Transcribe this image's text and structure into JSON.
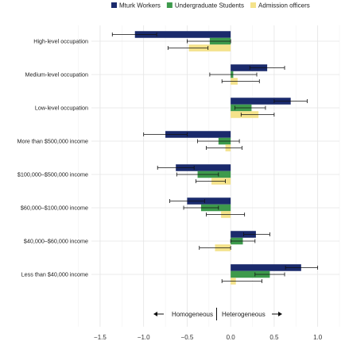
{
  "chart_data": {
    "type": "bar",
    "orientation": "horizontal",
    "categories": [
      "High-level occupation",
      "Medium-level occupation",
      "Low-level occupation",
      "More than $500,000 income",
      "$100,000–$500,000 income",
      "$60,000–$100,000 income",
      "$40,000–$60,000 income",
      "Less than $40,000 income"
    ],
    "series": [
      {
        "name": "Mturk Workers",
        "color": "#1a2a6c",
        "values": [
          -1.1,
          0.42,
          0.69,
          -0.75,
          -0.63,
          -0.5,
          0.29,
          0.81
        ],
        "err_low": [
          -1.36,
          0.22,
          0.5,
          -1.0,
          -0.84,
          -0.7,
          0.15,
          0.63
        ],
        "err_high": [
          -0.85,
          0.62,
          0.88,
          -0.5,
          -0.42,
          -0.3,
          0.45,
          1.0
        ]
      },
      {
        "name": "Undergraduate Students",
        "color": "#3d9a4c",
        "values": [
          -0.24,
          0.03,
          0.24,
          -0.14,
          -0.38,
          -0.34,
          0.14,
          0.45
        ],
        "err_low": [
          -0.5,
          -0.24,
          0.05,
          -0.38,
          -0.62,
          -0.54,
          0.0,
          0.28
        ],
        "err_high": [
          0.0,
          0.3,
          0.4,
          0.1,
          -0.14,
          -0.14,
          0.28,
          0.62
        ]
      },
      {
        "name": "Admission officers",
        "color": "#f4e28a",
        "values": [
          -0.48,
          0.08,
          0.32,
          -0.06,
          -0.22,
          -0.11,
          -0.18,
          0.06
        ],
        "err_low": [
          -0.72,
          -0.1,
          0.12,
          -0.28,
          -0.4,
          -0.28,
          -0.36,
          -0.1
        ],
        "err_high": [
          -0.26,
          0.33,
          0.5,
          0.13,
          -0.06,
          0.16,
          0.0,
          0.36
        ]
      }
    ],
    "xlim": [
      -1.6,
      1.25
    ],
    "xticks": [
      -1.5,
      -1.0,
      -0.5,
      0.0,
      0.5,
      1.0
    ],
    "xtick_labels": [
      "−1.5",
      "−1.0",
      "−0.5",
      "0.0",
      "0.5",
      "1.0"
    ],
    "annotation": {
      "left": "Homogeneous",
      "right": "Heterogeneous"
    },
    "grid": true,
    "legend_position": "top-right",
    "xlabel": "",
    "ylabel": ""
  }
}
